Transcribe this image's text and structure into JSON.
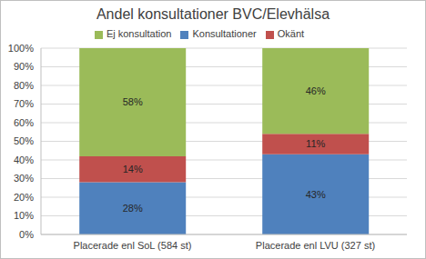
{
  "chart_data": {
    "type": "bar",
    "title": "Andel konsultationer BVC/Elevhälsa",
    "categories": [
      "Placerade enl SoL (584 st)",
      "Placerade enl LVU (327 st)"
    ],
    "series": [
      {
        "name": "Konsultationer",
        "color": "#4f81bd",
        "values": [
          28,
          43
        ],
        "value_labels": [
          "28%",
          "43%"
        ]
      },
      {
        "name": "Okänt",
        "color": "#c0504d",
        "values": [
          14,
          11
        ],
        "value_labels": [
          "14%",
          "11%"
        ]
      },
      {
        "name": "Ej konsultation",
        "color": "#9bbb59",
        "values": [
          58,
          46
        ],
        "value_labels": [
          "58%",
          "46%"
        ]
      }
    ],
    "stacked": true,
    "data_labels": true,
    "ylim": [
      0,
      100
    ],
    "yticks": [
      {
        "value": 0,
        "label": "0%"
      },
      {
        "value": 10,
        "label": "10%"
      },
      {
        "value": 20,
        "label": "20%"
      },
      {
        "value": 30,
        "label": "30%"
      },
      {
        "value": 40,
        "label": "40%"
      },
      {
        "value": 50,
        "label": "50%"
      },
      {
        "value": 60,
        "label": "60%"
      },
      {
        "value": 70,
        "label": "70%"
      },
      {
        "value": 80,
        "label": "80%"
      },
      {
        "value": 90,
        "label": "90%"
      },
      {
        "value": 100,
        "label": "100%"
      }
    ],
    "grid": true,
    "legend": "top"
  }
}
